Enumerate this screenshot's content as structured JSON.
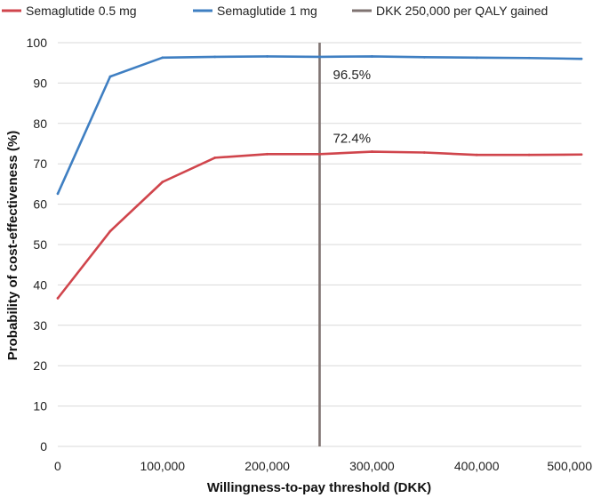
{
  "chart_data": {
    "type": "line",
    "title": "",
    "xlabel": "Willingness-to-pay threshold (DKK)",
    "ylabel": "Probability of cost-effectiveness (%)",
    "xlim": [
      0,
      500000
    ],
    "ylim": [
      0,
      100
    ],
    "x_ticks": [
      0,
      100000,
      200000,
      300000,
      400000,
      500000
    ],
    "x_tick_labels": [
      "0",
      "100,000",
      "200,000",
      "300,000",
      "400,000",
      "500,000"
    ],
    "y_ticks": [
      0,
      10,
      20,
      30,
      40,
      50,
      60,
      70,
      80,
      90,
      100
    ],
    "y_tick_labels": [
      "0",
      "10",
      "20",
      "30",
      "40",
      "50",
      "60",
      "70",
      "80",
      "90",
      "100"
    ],
    "grid": "horizontal",
    "legend_position": "top",
    "x": [
      0,
      50000,
      100000,
      150000,
      200000,
      250000,
      300000,
      350000,
      400000,
      450000,
      500000
    ],
    "series": [
      {
        "name": "Semaglutide 0.5 mg",
        "color": "#d0454c",
        "values": [
          36.7,
          53.3,
          65.5,
          71.5,
          72.4,
          72.4,
          73.0,
          72.8,
          72.2,
          72.2,
          72.3
        ]
      },
      {
        "name": "Semaglutide 1 mg",
        "color": "#3f7fc2",
        "values": [
          62.6,
          91.6,
          96.3,
          96.5,
          96.6,
          96.5,
          96.6,
          96.4,
          96.3,
          96.2,
          96.0
        ]
      }
    ],
    "reference_lines": [
      {
        "name": "DKK 250,000 per QALY gained",
        "x": 250000,
        "color": "#7f7371"
      }
    ],
    "annotations": [
      {
        "text": "96.5%",
        "x": 250000,
        "y": 96.5
      },
      {
        "text": "72.4%",
        "x": 250000,
        "y": 72.4
      }
    ]
  }
}
